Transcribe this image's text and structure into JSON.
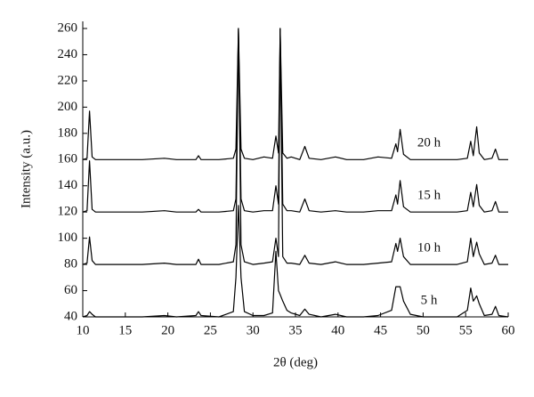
{
  "chart_data": {
    "type": "line",
    "xlabel": "2θ (deg)",
    "ylabel": "Intensity (a.u.)",
    "xlim": [
      10,
      60
    ],
    "xticks": [
      10,
      15,
      20,
      25,
      30,
      35,
      40,
      45,
      50,
      55,
      60
    ],
    "ylim": [
      40,
      260
    ],
    "yticks": [
      40,
      60,
      80,
      100,
      120,
      140,
      160,
      180,
      200,
      220,
      240,
      260
    ],
    "x": [
      10,
      10.5,
      10.8,
      11.1,
      11.5,
      13,
      15,
      17,
      19.6,
      21,
      23.3,
      23.6,
      23.9,
      26,
      27.7,
      28.0,
      28.3,
      28.6,
      29.0,
      30,
      31.3,
      32.3,
      32.7,
      33.0,
      33.2,
      33.5,
      34.0,
      34.5,
      35.5,
      36.1,
      36.6,
      38,
      39.7,
      41,
      43,
      44.7,
      46.3,
      46.8,
      47.0,
      47.3,
      47.7,
      48.5,
      50,
      52,
      54,
      55.2,
      55.6,
      55.9,
      56.3,
      56.6,
      57.2,
      58.1,
      58.5,
      58.9,
      60
    ],
    "series": [
      {
        "name": "20 h",
        "color": "#000000",
        "values": [
          160,
          161,
          197,
          162,
          160,
          160,
          160,
          160,
          161,
          160,
          160,
          163,
          160,
          160,
          161,
          168,
          259,
          168,
          161,
          160,
          162,
          161,
          178,
          165,
          259,
          165,
          161,
          162,
          160,
          170,
          161,
          160,
          162,
          160,
          160,
          162,
          161,
          172,
          166,
          183,
          164,
          160,
          160,
          160,
          160,
          161,
          174,
          163,
          185,
          165,
          160,
          161,
          168,
          160,
          160
        ]
      },
      {
        "name": "15 h",
        "color": "#000000",
        "values": [
          120,
          121,
          159,
          122,
          120,
          120,
          120,
          120,
          121,
          120,
          120,
          122,
          120,
          120,
          121,
          130,
          260,
          130,
          121,
          120,
          121,
          121,
          140,
          126,
          260,
          126,
          121,
          121,
          120,
          130,
          121,
          120,
          121,
          120,
          120,
          121,
          121,
          133,
          126,
          144,
          124,
          120,
          120,
          120,
          120,
          121,
          135,
          124,
          141,
          125,
          120,
          121,
          128,
          120,
          120
        ]
      },
      {
        "name": "10 h",
        "color": "#000000",
        "values": [
          80,
          81,
          101,
          83,
          80,
          80,
          80,
          80,
          81,
          80,
          80,
          84,
          80,
          80,
          82,
          95,
          260,
          95,
          82,
          80,
          81,
          82,
          100,
          86,
          260,
          86,
          81,
          81,
          80,
          87,
          81,
          80,
          82,
          80,
          80,
          81,
          82,
          96,
          90,
          100,
          86,
          80,
          80,
          80,
          80,
          82,
          100,
          86,
          97,
          88,
          80,
          81,
          87,
          80,
          80
        ]
      },
      {
        "name": "5 h",
        "color": "#000000",
        "values": [
          40,
          41,
          44,
          42,
          40,
          40,
          40,
          40,
          41,
          40,
          41,
          44,
          41,
          40,
          44,
          70,
          125,
          70,
          44,
          41,
          41,
          43,
          90,
          60,
          57,
          52,
          45,
          43,
          41,
          46,
          42,
          40,
          42,
          40,
          40,
          41,
          45,
          63,
          63,
          63,
          52,
          42,
          40,
          40,
          40,
          45,
          62,
          52,
          56,
          50,
          41,
          42,
          48,
          41,
          40
        ]
      }
    ]
  }
}
